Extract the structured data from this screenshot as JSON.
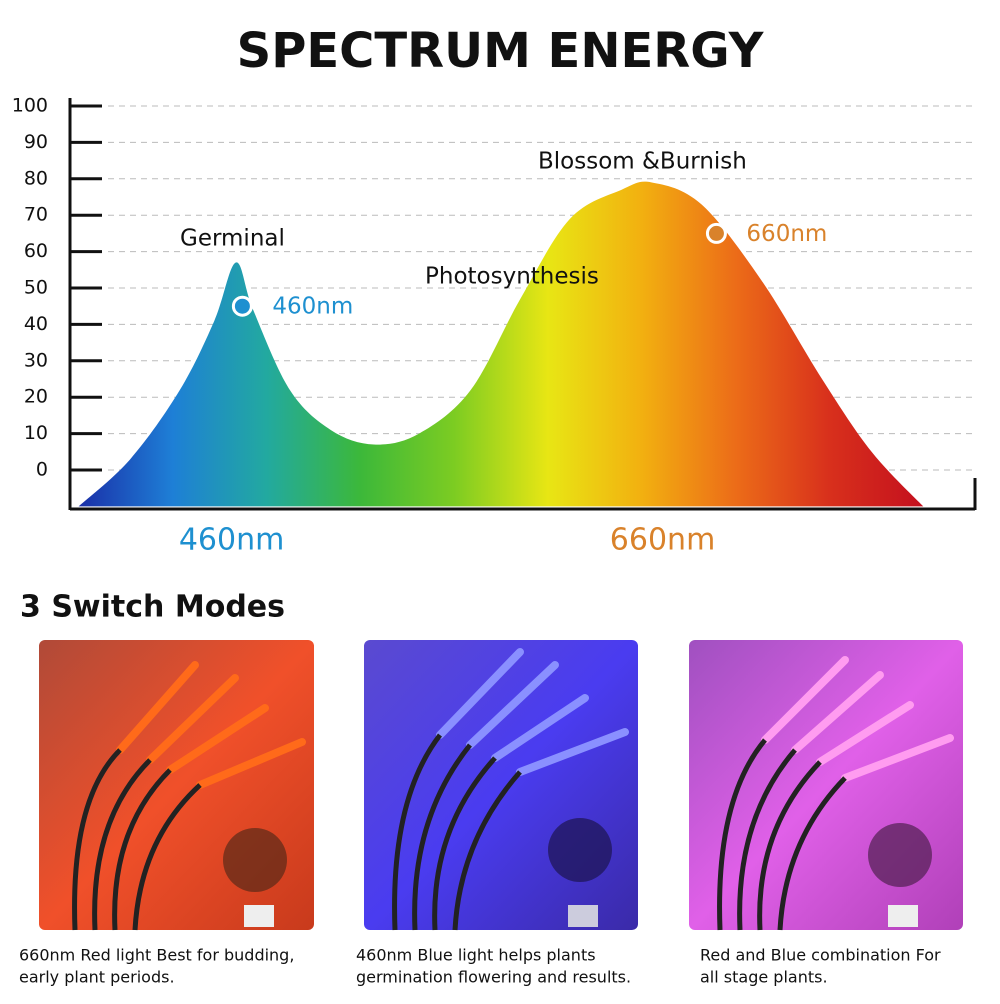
{
  "chart_data": {
    "type": "area",
    "title": "SPECTRUM ENERGY",
    "x": [
      389,
      413,
      436,
      452,
      462,
      470,
      487,
      506,
      526,
      547,
      571,
      594,
      617,
      641,
      655,
      678,
      706,
      734,
      757,
      781
    ],
    "values": [
      -10,
      3,
      22,
      41,
      57,
      44,
      22,
      11,
      7,
      10,
      22,
      47,
      69,
      77,
      79,
      73,
      52,
      25,
      5,
      -10
    ],
    "fill_colors": [
      "#1a2fa8",
      "#1e7fd6",
      "#22a9a0",
      "#3cb83a",
      "#7ccc22",
      "#e8e614",
      "#f2b010",
      "#ec6c18",
      "#d8301c",
      "#c4101e"
    ],
    "xlim": [
      385,
      805
    ],
    "ylim": [
      -10,
      100
    ],
    "xticks": [
      {
        "value": 460,
        "label": "460nm"
      },
      {
        "value": 660,
        "label": "660nm"
      }
    ],
    "yticks": [
      100,
      90,
      80,
      70,
      60,
      50,
      40,
      30,
      20,
      10,
      0
    ],
    "grid": true,
    "markers": {
      "x": [
        465,
        685
      ],
      "values": [
        45,
        65
      ],
      "labels": [
        "460nm",
        "660nm"
      ],
      "colors": [
        "#1e90d0",
        "#d9822b"
      ]
    },
    "annotations": [
      "Germinal",
      "Blossom &Burnish",
      "Photosynthesis"
    ]
  },
  "modes": {
    "title": "3 Switch Modes",
    "captions": [
      [
        "660nm Red light Best for budding,",
        "early plant periods."
      ],
      [
        "460nm Blue light helps plants",
        "germination flowering and results."
      ],
      [
        "Red and Blue combination For",
        "all stage plants."
      ]
    ]
  }
}
